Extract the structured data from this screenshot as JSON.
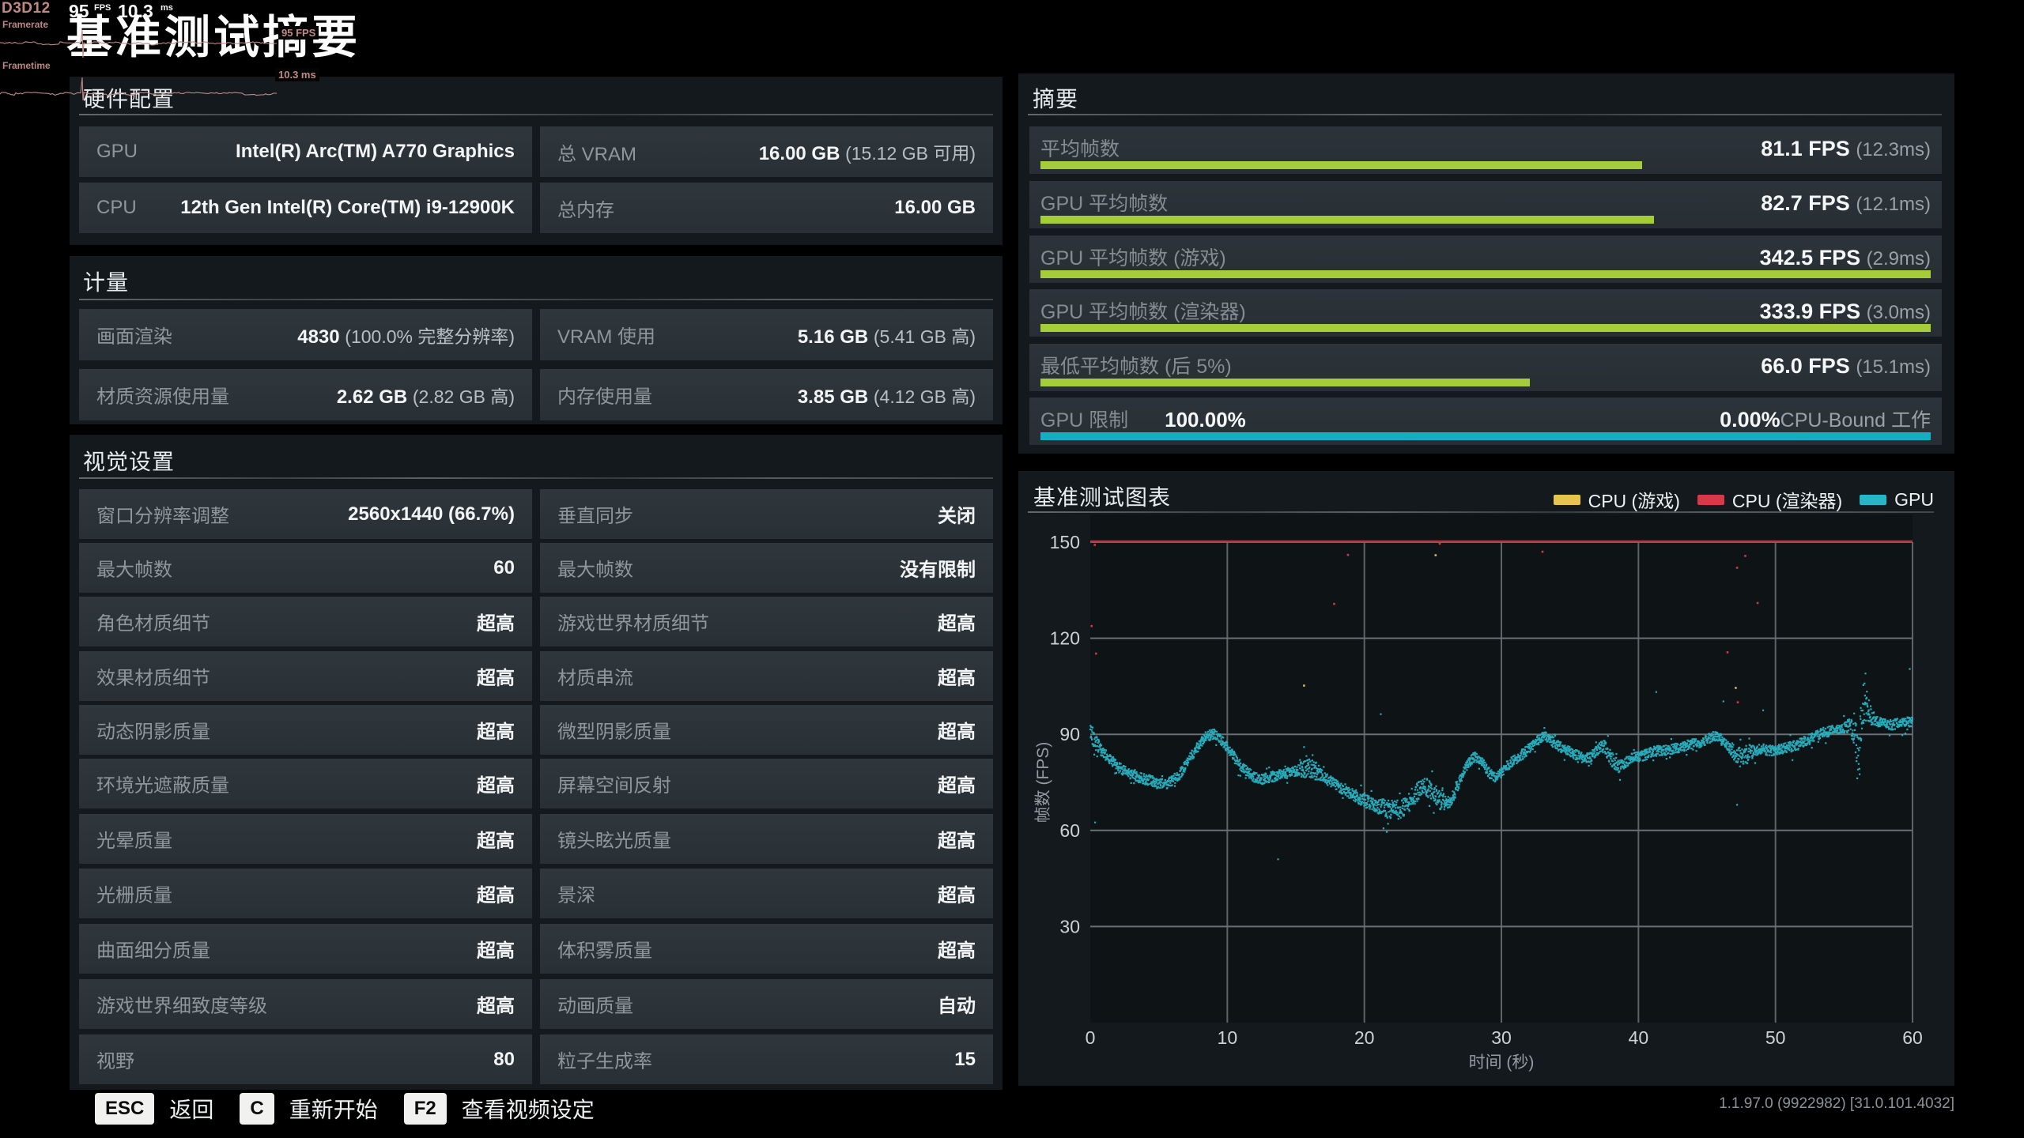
{
  "perf_overlay": {
    "api": "D3D12",
    "framerate_label": "Framerate",
    "frametime_label": "Frametime",
    "fps_value": "95",
    "fps_unit": "FPS",
    "frametime_value": "10.3",
    "frametime_unit": "ms",
    "fps_tag": "95 FPS",
    "frametime_tag": "10.3 ms",
    "accent_color": "#c08984"
  },
  "title": "基准测试摘要",
  "hardware": {
    "heading": "硬件配置",
    "rows": [
      {
        "label": "GPU",
        "value": "Intel(R) Arc(TM) A770 Graphics",
        "paren": ""
      },
      {
        "label": "总 VRAM",
        "value": "16.00 GB",
        "paren": "(15.12 GB 可用)"
      },
      {
        "label": "CPU",
        "value": "12th Gen Intel(R) Core(TM) i9-12900K",
        "paren": ""
      },
      {
        "label": "总内存",
        "value": "16.00 GB",
        "paren": ""
      }
    ]
  },
  "metrics": {
    "heading": "计量",
    "rows": [
      {
        "label": "画面渲染",
        "value": "4830",
        "paren": "(100.0% 完整分辨率)"
      },
      {
        "label": "VRAM 使用",
        "value": "5.16 GB",
        "paren": "(5.41 GB 高)"
      },
      {
        "label": "材质资源使用量",
        "value": "2.62 GB",
        "paren": "(2.82 GB 高)"
      },
      {
        "label": "内存使用量",
        "value": "3.85 GB",
        "paren": "(4.12 GB 高)"
      }
    ]
  },
  "visual": {
    "heading": "视觉设置",
    "rows": [
      {
        "l_label": "窗口分辨率调整",
        "l_value": "2560x1440 (66.7%)",
        "r_label": "垂直同步",
        "r_value": "关闭"
      },
      {
        "l_label": "最大帧数",
        "l_value": "60",
        "r_label": "最大帧数",
        "r_value": "没有限制"
      },
      {
        "l_label": "角色材质细节",
        "l_value": "超高",
        "r_label": "游戏世界材质细节",
        "r_value": "超高"
      },
      {
        "l_label": "效果材质细节",
        "l_value": "超高",
        "r_label": "材质串流",
        "r_value": "超高"
      },
      {
        "l_label": "动态阴影质量",
        "l_value": "超高",
        "r_label": "微型阴影质量",
        "r_value": "超高"
      },
      {
        "l_label": "环境光遮蔽质量",
        "l_value": "超高",
        "r_label": "屏幕空间反射",
        "r_value": "超高"
      },
      {
        "l_label": "光晕质量",
        "l_value": "超高",
        "r_label": "镜头眩光质量",
        "r_value": "超高"
      },
      {
        "l_label": "光栅质量",
        "l_value": "超高",
        "r_label": "景深",
        "r_value": "超高"
      },
      {
        "l_label": "曲面细分质量",
        "l_value": "超高",
        "r_label": "体积雾质量",
        "r_value": "超高"
      },
      {
        "l_label": "游戏世界细致度等级",
        "l_value": "超高",
        "r_label": "动画质量",
        "r_value": "自动"
      },
      {
        "l_label": "视野",
        "l_value": "80",
        "r_label": "粒子生成率",
        "r_value": "15"
      }
    ]
  },
  "summary": {
    "heading": "摘要",
    "bar_max_fps": 120,
    "rows": [
      {
        "label": "平均帧数",
        "value": "81.1 FPS",
        "paren": "(12.3ms)",
        "bar_pct": 67.6,
        "bar_color": "#a4cd39"
      },
      {
        "label": "GPU 平均帧数",
        "value": "82.7 FPS",
        "paren": "(12.1ms)",
        "bar_pct": 68.9,
        "bar_color": "#a4cd39"
      },
      {
        "label": "GPU 平均帧数 (游戏)",
        "value": "342.5 FPS",
        "paren": "(2.9ms)",
        "bar_pct": 100,
        "bar_color": "#a4cd39"
      },
      {
        "label": "GPU 平均帧数 (渲染器)",
        "value": "333.9 FPS",
        "paren": "(3.0ms)",
        "bar_pct": 100,
        "bar_color": "#a4cd39"
      },
      {
        "label": "最低平均帧数 (后 5%)",
        "value": "66.0 FPS",
        "paren": "(15.1ms)",
        "bar_pct": 55,
        "bar_color": "#a4cd39"
      }
    ],
    "gpu_limit": {
      "label": "GPU 限制",
      "value": "100.00%",
      "right_value": "0.00%",
      "right_label": "CPU-Bound 工作",
      "bar_pct": 100,
      "bar_color": "#14aec2"
    }
  },
  "chart_data": {
    "type": "scatter",
    "title": "基准测试图表",
    "xlabel": "时间 (秒)",
    "ylabel": "帧数 (FPS)",
    "xlim": [
      0,
      60
    ],
    "ylim": [
      0,
      150
    ],
    "xticks": [
      0,
      10,
      20,
      30,
      40,
      50,
      60
    ],
    "yticks": [
      30,
      60,
      90,
      120,
      150
    ],
    "grid": true,
    "legend_position": "top-right",
    "legend": [
      {
        "name": "CPU (游戏)",
        "color": "#e7c54c"
      },
      {
        "name": "CPU (渲染器)",
        "color": "#d93848"
      },
      {
        "name": "GPU",
        "color": "#25b7c9"
      }
    ],
    "series": [
      {
        "name": "CPU (渲染器)",
        "type": "line",
        "color": "#bb3340",
        "clipped_at": 150,
        "outliers": [
          [
            0.1,
            123.8
          ],
          [
            0.33,
            149.1
          ],
          [
            0.42,
            115.2
          ],
          [
            17.8,
            130.7
          ],
          [
            18.8,
            146.0
          ],
          [
            25.5,
            149.5
          ],
          [
            33.0,
            147.0
          ],
          [
            46.5,
            115.6
          ],
          [
            47.2,
            142.0
          ],
          [
            47.25,
            100.0
          ],
          [
            47.8,
            145.7
          ],
          [
            48.7,
            131.0
          ]
        ]
      },
      {
        "name": "CPU (游戏)",
        "type": "scatter",
        "color": "#d8b54a",
        "outliers": [
          [
            15.6,
            105.2
          ],
          [
            25.2,
            145.9
          ],
          [
            47.1,
            104.5
          ]
        ]
      },
      {
        "name": "GPU",
        "type": "scatter",
        "color": "#29b3c4",
        "trend_dt": 0.5,
        "trend": [
          91,
          86.5,
          84,
          82,
          80,
          78.5,
          77.5,
          76.5,
          76,
          75.5,
          74.5,
          74.5,
          75.5,
          77.5,
          80.5,
          84,
          87,
          89.5,
          90,
          88.5,
          86,
          83,
          80,
          78,
          76.5,
          76,
          76.5,
          77,
          77.5,
          78,
          78.5,
          79,
          79.5,
          78.5,
          77,
          75.5,
          74,
          72.5,
          71.5,
          70.5,
          69.5,
          68.5,
          67.5,
          67,
          66.5,
          66.5,
          67.5,
          70,
          72.5,
          73.5,
          72,
          69.5,
          68,
          70.5,
          76,
          80.5,
          83,
          82,
          78.5,
          76.5,
          78,
          80.5,
          82,
          83.5,
          85.5,
          87.5,
          89.5,
          88.5,
          87,
          85.5,
          84.5,
          83.5,
          82.5,
          83,
          85,
          86.5,
          82.5,
          80,
          81,
          82.5,
          83,
          83.5,
          84.5,
          85,
          85,
          85.5,
          86,
          86.5,
          87,
          87.5,
          88.5,
          89.5,
          88.5,
          86.5,
          84.5,
          82.5,
          84,
          85,
          85.5,
          85,
          85,
          85.5,
          86,
          86.5,
          87.5,
          88.5,
          89.5,
          90.5,
          91,
          91.5,
          92,
          93,
          85,
          100.5,
          95.5,
          94,
          93.5,
          93,
          93.5,
          94,
          93.5
        ],
        "spread": [
          2.6,
          2.6,
          1.6,
          1.6,
          1.6,
          1.6,
          1.6,
          1.6,
          1.6,
          1.6,
          1.6,
          1.6,
          1.6,
          1.6,
          1.6,
          1.6,
          1.6,
          1.6,
          1.6,
          1.6,
          1.6,
          1.6,
          1.6,
          1.6,
          1.6,
          1.6,
          1.6,
          1.6,
          1.6,
          1.6,
          1.6,
          2.8,
          2.8,
          2.8,
          1.6,
          1.6,
          1.6,
          1.6,
          1.6,
          2.2,
          2.2,
          2.2,
          2.2,
          2.9,
          2.9,
          2.9,
          2.9,
          2.9,
          2.9,
          2.9,
          2.9,
          2.9,
          2.2,
          2.2,
          1.6,
          1.6,
          1.6,
          1.6,
          1.6,
          1.6,
          1.6,
          1.6,
          1.6,
          1.6,
          1.6,
          1.6,
          1.6,
          1.6,
          1.6,
          1.6,
          1.6,
          1.6,
          1.6,
          1.6,
          1.6,
          2.2,
          2.2,
          2.2,
          1.6,
          1.6,
          1.6,
          1.6,
          1.6,
          1.6,
          1.6,
          1.6,
          1.6,
          1.6,
          1.6,
          1.6,
          1.6,
          1.6,
          1.6,
          1.6,
          2.9,
          2.9,
          2.9,
          1.6,
          1.6,
          1.6,
          1.6,
          1.6,
          1.6,
          1.6,
          1.6,
          1.6,
          1.6,
          1.6,
          1.6,
          1.6,
          1.6,
          2.4,
          7.5,
          6.0,
          2.6,
          1.6,
          1.6,
          1.6,
          1.6,
          1.6,
          1.6
        ],
        "points_per_second": 58,
        "outliers": [
          [
            0.35,
            62.5
          ],
          [
            13.7,
            51.0
          ],
          [
            15.6,
            86.0
          ],
          [
            21.2,
            96.3
          ],
          [
            41.3,
            103.2
          ],
          [
            46.2,
            100.3
          ],
          [
            47.2,
            68.0
          ],
          [
            49.1,
            97.5
          ],
          [
            59.8,
            110.4
          ]
        ]
      }
    ]
  },
  "footer": {
    "hints": [
      {
        "key": "ESC",
        "label": "返回"
      },
      {
        "key": "C",
        "label": "重新开始"
      },
      {
        "key": "F2",
        "label": "查看视频设定"
      }
    ],
    "version": "1.1.97.0 (9922982) [31.0.101.4032]"
  }
}
